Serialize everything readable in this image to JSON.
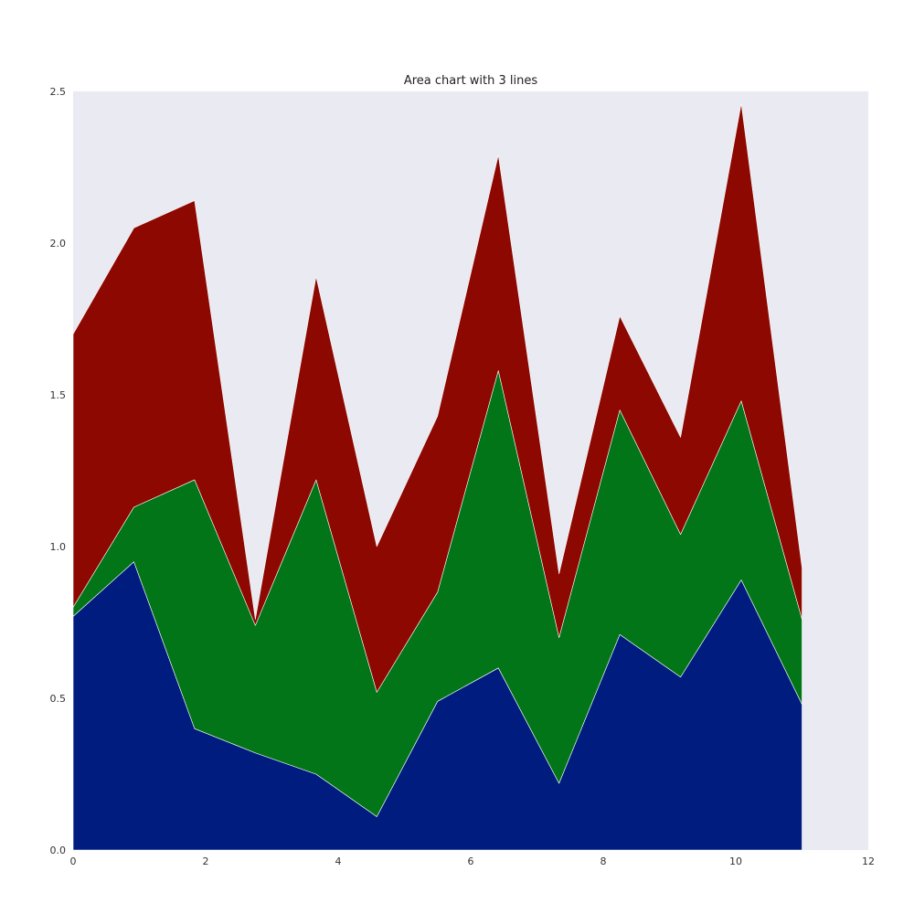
{
  "chart_data": {
    "type": "area",
    "stacked": true,
    "title": "Area chart with 3 lines",
    "xlabel": "",
    "ylabel": "",
    "xlim": [
      0,
      12
    ],
    "ylim": [
      0,
      2.5
    ],
    "xticks": [
      "0",
      "2",
      "4",
      "6",
      "8",
      "10",
      "12"
    ],
    "yticks": [
      "0.0",
      "0.5",
      "1.0",
      "1.5",
      "2.0",
      "2.5"
    ],
    "grid": false,
    "legend": "none",
    "x": [
      0,
      0.917,
      1.833,
      2.75,
      3.667,
      4.583,
      5.5,
      6.417,
      7.333,
      8.25,
      9.167,
      10.083,
      11.0
    ],
    "series": [
      {
        "color": "#001c7f",
        "values": [
          0.77,
          0.95,
          0.4,
          0.32,
          0.25,
          0.11,
          0.49,
          0.6,
          0.22,
          0.71,
          0.57,
          0.89,
          0.48
        ]
      },
      {
        "color": "#017517",
        "values": [
          0.03,
          0.18,
          0.82,
          0.42,
          0.97,
          0.41,
          0.36,
          0.98,
          0.48,
          0.74,
          0.47,
          0.59,
          0.28
        ]
      },
      {
        "color": "#8c0800",
        "values": [
          0.9,
          0.92,
          0.92,
          0.02,
          0.67,
          0.48,
          0.58,
          0.71,
          0.21,
          0.31,
          0.32,
          0.98,
          0.17
        ]
      }
    ],
    "background_color": "#eaeaf2"
  }
}
